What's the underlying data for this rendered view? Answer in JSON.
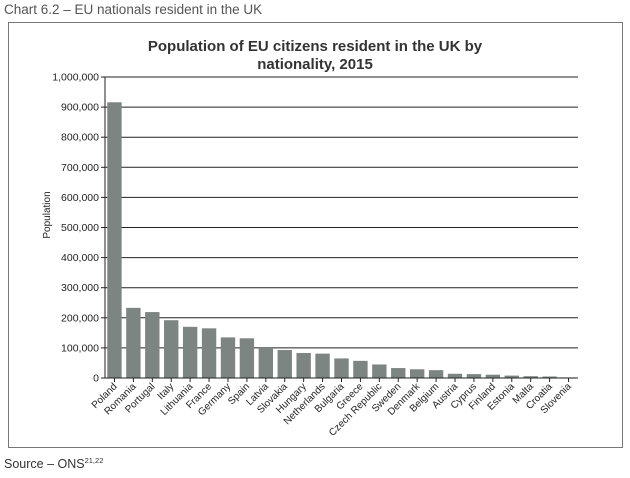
{
  "heading": "Chart 6.2 – EU nationals resident in the UK",
  "source": {
    "label": "Source – ONS",
    "refs": "21,22"
  },
  "colors": {
    "bar": "#7c8582",
    "axis": "#222222",
    "grid": "#222222"
  },
  "chart_data": {
    "type": "bar",
    "title_lines": [
      "Population of EU citizens resident in the UK by",
      "nationality, 2015"
    ],
    "xlabel": "",
    "ylabel": "Population",
    "ylim": [
      0,
      1000000
    ],
    "yticks": [
      0,
      100000,
      200000,
      300000,
      400000,
      500000,
      600000,
      700000,
      800000,
      900000,
      1000000
    ],
    "ytick_labels": [
      "0",
      "100,000",
      "200,000",
      "300,000",
      "400,000",
      "500,000",
      "600,000",
      "700,000",
      "800,000",
      "900,000",
      "1,000,000"
    ],
    "grid": true,
    "categories": [
      "Poland",
      "Romania",
      "Portugal",
      "Italy",
      "Lithuania",
      "France",
      "Germany",
      "Spain",
      "Latvia",
      "Slovakia",
      "Hungary",
      "Netherlands",
      "Bulgaria",
      "Greece",
      "Czech Republic",
      "Sweden",
      "Denmark",
      "Belgium",
      "Austria",
      "Cyprus",
      "Finland",
      "Estonia",
      "Malta",
      "Croatia",
      "Slovenia"
    ],
    "values": [
      916000,
      233000,
      219000,
      192000,
      170000,
      165000,
      135000,
      132000,
      100000,
      93000,
      83000,
      81000,
      65000,
      57000,
      45000,
      33000,
      29000,
      26000,
      14000,
      13000,
      11000,
      8000,
      6000,
      5000,
      2000
    ]
  }
}
